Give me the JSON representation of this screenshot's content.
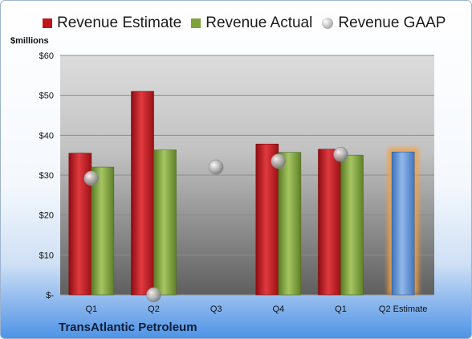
{
  "legend": {
    "estimate": "Revenue Estimate",
    "actual": "Revenue Actual",
    "gaap": "Revenue GAAP"
  },
  "unit_label": "$millions",
  "company": "TransAtlantic Petroleum",
  "colors": {
    "estimate": "#c0141b",
    "actual": "#7ea23a",
    "gaap": "#b5b5b5",
    "forecast": "#5a8fd0",
    "forecast_glow": "#f5a142"
  },
  "chart_data": {
    "type": "bar",
    "categories": [
      "Q1",
      "Q2",
      "Q3",
      "Q4",
      "Q1",
      "Q2 Estimate"
    ],
    "series": [
      {
        "name": "Revenue Estimate",
        "values": [
          35.5,
          51,
          null,
          37.8,
          36.5,
          35.8
        ]
      },
      {
        "name": "Revenue Actual",
        "values": [
          32,
          36.3,
          null,
          35.7,
          35,
          null
        ]
      },
      {
        "name": "Revenue GAAP",
        "values": [
          29.2,
          0,
          32,
          33.5,
          35.2,
          null
        ]
      }
    ],
    "ylabel": "$millions",
    "ylim": [
      0,
      60
    ],
    "yticks": [
      0,
      10,
      20,
      30,
      40,
      50,
      60
    ],
    "ytick_labels": [
      "$-",
      "$10",
      "$20",
      "$30",
      "$40",
      "$50",
      "$60"
    ],
    "grid": true,
    "legend": "top"
  }
}
